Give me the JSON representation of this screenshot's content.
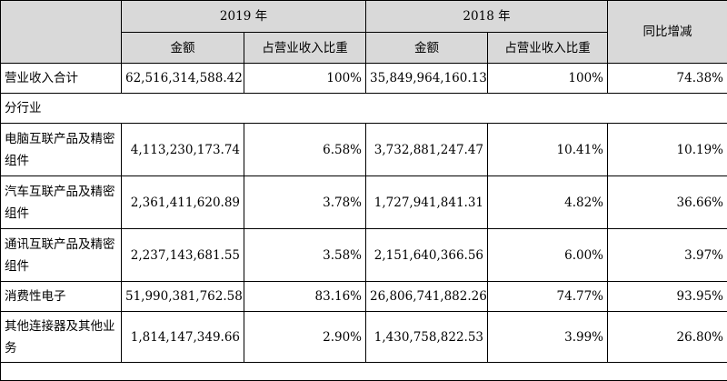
{
  "header": {
    "year_2019": "2019 年",
    "year_2018": "2018 年",
    "yoy": "同比增减",
    "amount": "金额",
    "share": "占营业收入比重"
  },
  "total_row": {
    "label": "营业收入合计",
    "amt2019": "62,516,314,588.42",
    "pct2019": "100%",
    "amt2018": "35,849,964,160.13",
    "pct2018": "100%",
    "yoy": "74.38%"
  },
  "section_label": "分行业",
  "rows": [
    {
      "label": "电脑互联产品及精密组件",
      "amt2019": "4,113,230,173.74",
      "pct2019": "6.58%",
      "amt2018": "3,732,881,247.47",
      "pct2018": "10.41%",
      "yoy": "10.19%"
    },
    {
      "label": "汽车互联产品及精密组件",
      "amt2019": "2,361,411,620.89",
      "pct2019": "3.78%",
      "amt2018": "1,727,941,841.31",
      "pct2018": "4.82%",
      "yoy": "36.66%"
    },
    {
      "label": "通讯互联产品及精密组件",
      "amt2019": "2,237,143,681.55",
      "pct2019": "3.58%",
      "amt2018": "2,151,640,366.56",
      "pct2018": "6.00%",
      "yoy": "3.97%"
    },
    {
      "label": "消费性电子",
      "amt2019": "51,990,381,762.58",
      "pct2019": "83.16%",
      "amt2018": "26,806,741,882.26",
      "pct2018": "74.77%",
      "yoy": "93.95%"
    },
    {
      "label": "其他连接器及其他业务",
      "amt2019": "1,814,147,349.66",
      "pct2019": "2.90%",
      "amt2018": "1,430,758,822.53",
      "pct2018": "3.99%",
      "yoy": "26.80%"
    }
  ]
}
